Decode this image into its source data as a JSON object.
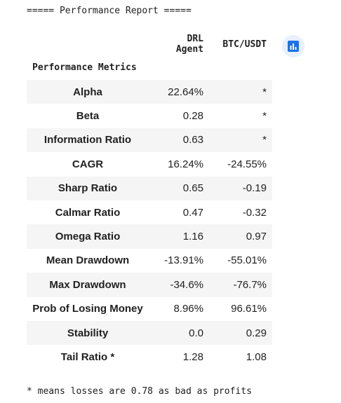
{
  "report_header": "===== Performance Report =====",
  "table": {
    "index_label": "Performance Metrics",
    "columns": [
      "DRL Agent",
      "BTC/USDT"
    ],
    "rows": [
      {
        "metric": "Alpha",
        "values": [
          "22.64%",
          "*"
        ]
      },
      {
        "metric": "Beta",
        "values": [
          "0.28",
          "*"
        ]
      },
      {
        "metric": "Information Ratio",
        "values": [
          "0.63",
          "*"
        ]
      },
      {
        "metric": "CAGR",
        "values": [
          "16.24%",
          "-24.55%"
        ]
      },
      {
        "metric": "Sharp Ratio",
        "values": [
          "0.65",
          "-0.19"
        ]
      },
      {
        "metric": "Calmar Ratio",
        "values": [
          "0.47",
          "-0.32"
        ]
      },
      {
        "metric": "Omega Ratio",
        "values": [
          "1.16",
          "0.97"
        ]
      },
      {
        "metric": "Mean Drawdown",
        "values": [
          "-13.91%",
          "-55.01%"
        ]
      },
      {
        "metric": "Max Drawdown",
        "values": [
          "-34.6%",
          "-76.7%"
        ]
      },
      {
        "metric": "Prob of Losing Money",
        "values": [
          "8.96%",
          "96.61%"
        ]
      },
      {
        "metric": "Stability",
        "values": [
          "0.0",
          "0.29"
        ]
      },
      {
        "metric": "Tail Ratio *",
        "values": [
          "1.28",
          "1.08"
        ]
      }
    ]
  },
  "footnote": "* means losses are 0.78 as bad as profits",
  "colors": {
    "accent": "#1a73e8",
    "button_bg": "#e8f0fe",
    "row_stripe": "#f5f5f5"
  },
  "icons": {
    "chart_button": "bar-chart-icon"
  }
}
